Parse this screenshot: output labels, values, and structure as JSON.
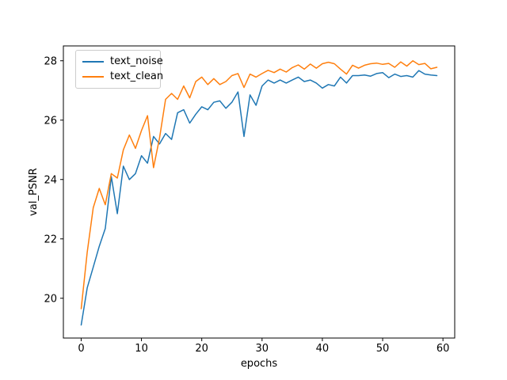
{
  "figure": {
    "background": "#ffffff",
    "axis_color": "#000000",
    "legend_border_color": "#cccccc"
  },
  "chart_data": {
    "type": "line",
    "title": "",
    "xlabel": "epochs",
    "ylabel": "val_PSNR",
    "grid": false,
    "legend_position": "upper left",
    "xlim": [
      -2.95,
      61.95
    ],
    "ylim": [
      18.66,
      28.5
    ],
    "xticks": [
      0,
      10,
      20,
      30,
      40,
      50,
      60
    ],
    "yticks": [
      20,
      22,
      24,
      26,
      28
    ],
    "x": [
      0,
      1,
      2,
      3,
      4,
      5,
      6,
      7,
      8,
      9,
      10,
      11,
      12,
      13,
      14,
      15,
      16,
      17,
      18,
      19,
      20,
      21,
      22,
      23,
      24,
      25,
      26,
      27,
      28,
      29,
      30,
      31,
      32,
      33,
      34,
      35,
      36,
      37,
      38,
      39,
      40,
      41,
      42,
      43,
      44,
      45,
      46,
      47,
      48,
      49,
      50,
      51,
      52,
      53,
      54,
      55,
      56,
      57,
      58,
      59
    ],
    "series": [
      {
        "name": "text_noise",
        "color": "#1f77b4",
        "values": [
          19.1,
          20.35,
          21.05,
          21.75,
          22.35,
          24.1,
          22.85,
          24.45,
          24.0,
          24.2,
          24.8,
          24.55,
          25.45,
          25.2,
          25.55,
          25.35,
          26.25,
          26.35,
          25.9,
          26.2,
          26.45,
          26.35,
          26.6,
          26.65,
          26.4,
          26.6,
          26.95,
          25.45,
          26.85,
          26.5,
          27.15,
          27.35,
          27.25,
          27.35,
          27.25,
          27.35,
          27.45,
          27.3,
          27.35,
          27.25,
          27.08,
          27.2,
          27.15,
          27.45,
          27.25,
          27.5,
          27.5,
          27.52,
          27.48,
          27.57,
          27.6,
          27.43,
          27.55,
          27.47,
          27.5,
          27.45,
          27.67,
          27.55,
          27.52,
          27.5
        ]
      },
      {
        "name": "text_clean",
        "color": "#ff7f0e",
        "values": [
          19.65,
          21.55,
          23.05,
          23.7,
          23.15,
          24.2,
          24.05,
          25.0,
          25.5,
          25.05,
          25.65,
          26.15,
          24.4,
          25.4,
          26.7,
          26.9,
          26.7,
          27.15,
          26.75,
          27.3,
          27.45,
          27.2,
          27.4,
          27.2,
          27.3,
          27.5,
          27.57,
          27.1,
          27.55,
          27.45,
          27.57,
          27.68,
          27.6,
          27.72,
          27.62,
          27.77,
          27.86,
          27.72,
          27.89,
          27.75,
          27.9,
          27.95,
          27.9,
          27.72,
          27.55,
          27.85,
          27.75,
          27.85,
          27.9,
          27.92,
          27.88,
          27.91,
          27.78,
          27.96,
          27.82,
          28.0,
          27.87,
          27.91,
          27.73,
          27.78
        ]
      }
    ]
  }
}
